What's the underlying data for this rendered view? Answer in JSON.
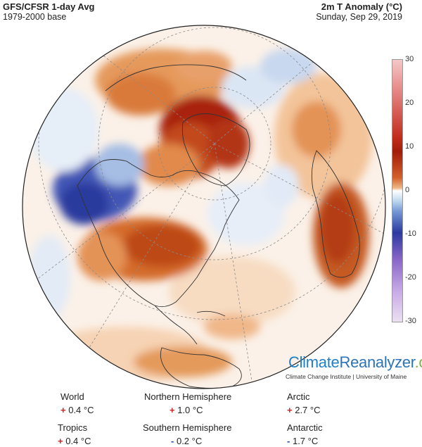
{
  "header": {
    "title": "GFS/CFSR 1-day Avg",
    "base": "1979-2000 base",
    "variable": "2m T Anomaly (°C)",
    "date": "Sunday, Sep 29, 2019"
  },
  "legend": {
    "ticks": [
      "30",
      "20",
      "10",
      "0",
      "-10",
      "-20",
      "-30"
    ],
    "range": [
      -30,
      30
    ]
  },
  "branding": {
    "climate": "Climate",
    "reanalyzer": "Reanalyzer",
    "org": ".org",
    "subtitle": "Climate Change Institute | University of Maine"
  },
  "stats": {
    "world": {
      "label": "World",
      "sign": "+",
      "value": "0.4 °C"
    },
    "nh": {
      "label": "Northern Hemisphere",
      "sign": "+",
      "value": "1.0 °C"
    },
    "arctic": {
      "label": "Arctic",
      "sign": "+",
      "value": "2.7 °C"
    },
    "tropics": {
      "label": "Tropics",
      "sign": "+",
      "value": "0.4 °C"
    },
    "sh": {
      "label": "Southern Hemisphere",
      "sign": "-",
      "value": "0.2 °C"
    },
    "antarctic": {
      "label": "Antarctic",
      "sign": "-",
      "value": "1.7 °C"
    }
  },
  "colors": {
    "warm_strong": "#a31b0a",
    "warm": "#d2692e",
    "warm_light": "#f3c9a0",
    "neutral": "#fbf3ec",
    "cool_light": "#cfe0f2",
    "cool": "#2b3aa0"
  }
}
